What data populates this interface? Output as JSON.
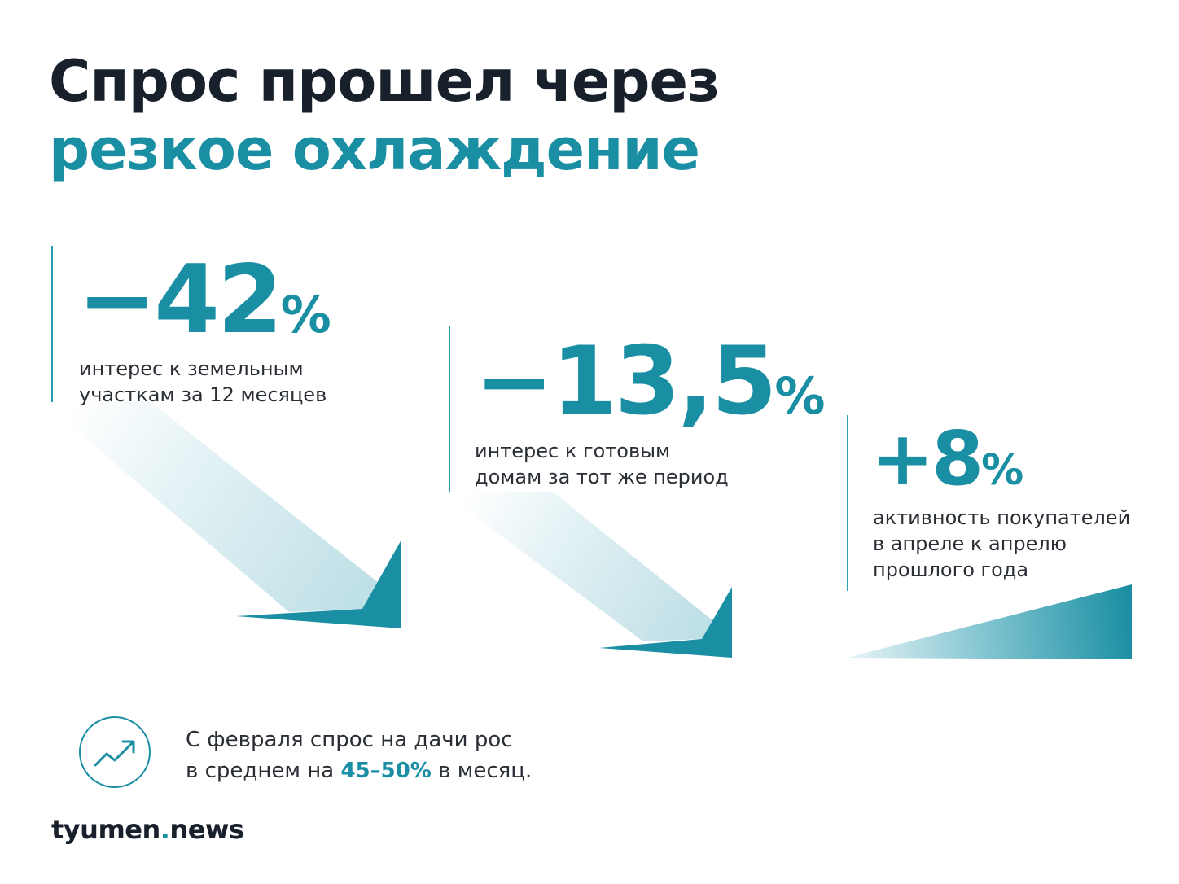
{
  "title": {
    "line1": "Спрос прошел через",
    "line2": "резкое охлаждение"
  },
  "stats": [
    {
      "value": "−42",
      "unit": "%",
      "desc_line1": "интерес к земельным",
      "desc_line2": "участкам за 12 месяцев",
      "change_percent": -42
    },
    {
      "value": "−13,5",
      "unit": "%",
      "desc_line1": "интерес к готовым",
      "desc_line2": "домам за тот же период",
      "change_percent": -13.5
    },
    {
      "value": "+8",
      "unit": "%",
      "desc_line1": "активность покупателей",
      "desc_line2": "в апреле к апрелю",
      "desc_line3": "прошлого года",
      "change_percent": 8
    }
  ],
  "note": {
    "line1": "С февраля спрос на дачи рос",
    "line2_prefix": "в среднем на ",
    "line2_highlight": "45–50%",
    "line2_suffix": " в месяц."
  },
  "brand": {
    "name": "tyumen",
    "dot": ".",
    "suffix": "news"
  },
  "colors": {
    "accent": "#1a8fa3",
    "title_dark": "#18212b",
    "arrow_light": "#e6f3f6"
  },
  "icons": {
    "trend": "trending-up-icon"
  }
}
